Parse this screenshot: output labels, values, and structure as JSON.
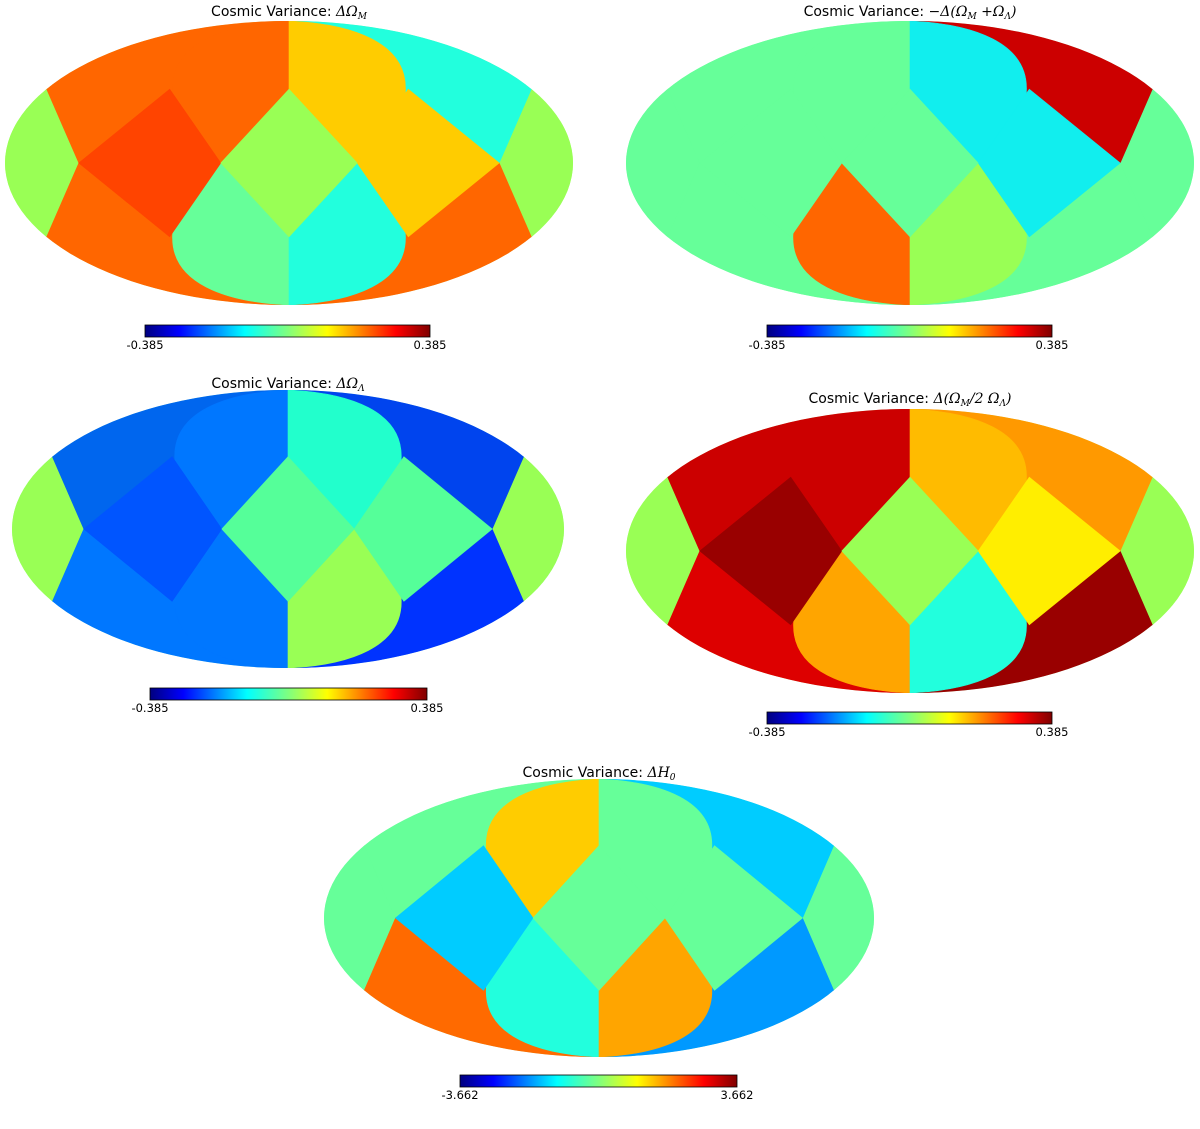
{
  "colors": {
    "jet": [
      "#00007f",
      "#0000ff",
      "#007fff",
      "#00ffff",
      "#7fff7f",
      "#ffff00",
      "#ff7f00",
      "#ff0000",
      "#7f0000"
    ],
    "palette": {
      "orange": "#ff6600",
      "redorange": "#ff4400",
      "amber": "#ffcc00",
      "cyan": "#22ffdd",
      "mint": "#66ff99",
      "lime": "#99ff55",
      "aqua": "#11eeee",
      "crimson": "#cc0000",
      "gold": "#ffbb00",
      "orange2": "#ff9900",
      "yellow": "#ffee00",
      "darkred": "#990000",
      "red": "#dd0000",
      "blue1": "#0066ee",
      "blue2": "#0044ee",
      "blue3": "#0055ff",
      "blue4": "#0077ff",
      "blue5": "#0033ff",
      "teal": "#22ffcc",
      "sky": "#00ccff",
      "azure": "#0099ff",
      "lgreen": "#55ff99",
      "green2": "#44ff99",
      "lgreen2": "#66ff66",
      "orange3": "#ffa500",
      "orange4": "#ff9900",
      "orange5": "#ff6a00"
    }
  },
  "maps": [
    {
      "id": "dOm",
      "title_text": "Cosmic Variance: ",
      "title_symbol": "ΔΩ",
      "title_sub": "M",
      "title_tail": "",
      "colorbar": {
        "min_label": "-0.385",
        "max_label": "0.385"
      },
      "regions": {
        "cap_tl": "orange",
        "cap_tr": "cyan",
        "cap_bl": "orange",
        "cap_br": "orange",
        "mid_l": "redorange",
        "mid_r": "amber",
        "band_top_l": "orange",
        "band_top_r": "amber",
        "band_bot_l": "mint",
        "band_bot_r": "cyan",
        "center": "lime",
        "edge_l": "lime",
        "edge_r": "lime"
      }
    },
    {
      "id": "dOmOl",
      "title_text": "Cosmic Variance: ",
      "title_symbol": "−Δ(Ω",
      "title_sub": "M",
      "title_tail": " +Ω",
      "title_sub2": "Λ",
      "title_end": ")",
      "colorbar": {
        "min_label": "-0.385",
        "max_label": "0.385"
      },
      "regions": {
        "cap_tl": "mint",
        "cap_tr": "crimson",
        "cap_bl": "mint",
        "cap_br": "mint",
        "mid_l": "mint",
        "mid_r": "aqua",
        "band_top_l": "mint",
        "band_top_r": "aqua",
        "band_bot_l": "orange",
        "band_bot_r": "lime",
        "center": "mint",
        "edge_l": "mint",
        "edge_r": "mint"
      }
    },
    {
      "id": "dOl",
      "title_text": "Cosmic Variance: ",
      "title_symbol": "ΔΩ",
      "title_sub": "Λ",
      "title_tail": "",
      "colorbar": {
        "min_label": "-0.385",
        "max_label": "0.385"
      },
      "regions": {
        "cap_tl": "blue1",
        "cap_tr": "blue2",
        "cap_bl": "blue4",
        "cap_br": "blue5",
        "mid_l": "blue3",
        "mid_r": "lgreen",
        "band_top_l": "blue4",
        "band_top_r": "teal",
        "band_bot_l": "blue4",
        "band_bot_r": "lime",
        "center": "lgreen",
        "edge_l": "lime",
        "edge_r": "lime"
      }
    },
    {
      "id": "dOm2Ol",
      "title_text": "Cosmic Variance: ",
      "title_symbol": "Δ(Ω",
      "title_sub": "M",
      "title_tail": "/2  Ω",
      "title_sub2": "Λ",
      "title_end": ")",
      "colorbar": {
        "min_label": "-0.385",
        "max_label": "0.385"
      },
      "regions": {
        "cap_tl": "crimson",
        "cap_tr": "orange2",
        "cap_bl": "red",
        "cap_br": "darkred",
        "mid_l": "darkred",
        "mid_r": "yellow",
        "band_top_l": "crimson",
        "band_top_r": "gold",
        "band_bot_l": "orange3",
        "band_bot_r": "cyan",
        "center": "lime",
        "edge_l": "lime",
        "edge_r": "lime"
      }
    },
    {
      "id": "dH0",
      "title_text": "Cosmic Variance: ",
      "title_symbol": "ΔH",
      "title_sub": "0",
      "title_tail": "",
      "colorbar": {
        "min_label": "-3.662",
        "max_label": "3.662"
      },
      "regions": {
        "cap_tl": "mint",
        "cap_tr": "sky",
        "cap_bl": "orange5",
        "cap_br": "azure",
        "mid_l": "sky",
        "mid_r": "mint",
        "band_top_l": "amber",
        "band_top_r": "mint",
        "band_bot_l": "cyan",
        "band_bot_r": "orange3",
        "center": "mint",
        "edge_l": "mint",
        "edge_r": "mint"
      }
    }
  ]
}
